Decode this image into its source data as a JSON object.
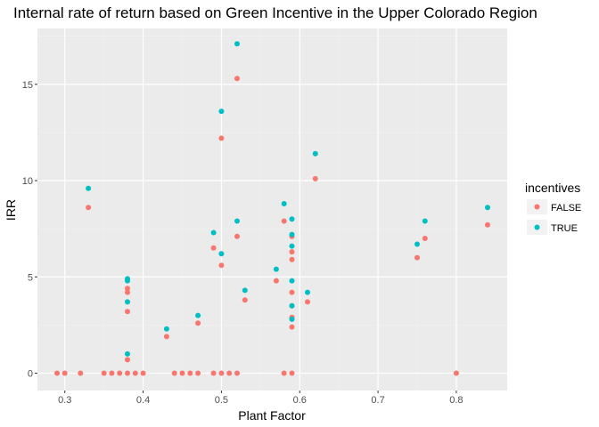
{
  "chart_data": {
    "type": "scatter",
    "title": "Internal rate of return based on Green Incentive in the Upper Colorado Region",
    "xlabel": "Plant Factor",
    "ylabel": "IRR",
    "xlim": [
      0.265,
      0.865
    ],
    "ylim": [
      -0.9,
      17.9
    ],
    "xticks": [
      0.3,
      0.4,
      0.5,
      0.6,
      0.7,
      0.8
    ],
    "xtick_labels": [
      "0.3",
      "0.4",
      "0.5",
      "0.6",
      "0.7",
      "0.8"
    ],
    "yticks": [
      0,
      5,
      10,
      15
    ],
    "ytick_labels": [
      "0",
      "5",
      "10",
      "15"
    ],
    "grid": true,
    "legend": {
      "title": "incentives",
      "position": "right"
    },
    "series": [
      {
        "name": "FALSE",
        "color": "#F8766D",
        "points": [
          [
            0.29,
            0
          ],
          [
            0.3,
            0
          ],
          [
            0.32,
            0
          ],
          [
            0.33,
            8.6
          ],
          [
            0.35,
            0
          ],
          [
            0.36,
            0
          ],
          [
            0.37,
            0
          ],
          [
            0.38,
            0
          ],
          [
            0.38,
            0.7
          ],
          [
            0.38,
            3.2
          ],
          [
            0.38,
            4.2
          ],
          [
            0.38,
            4.4
          ],
          [
            0.39,
            0
          ],
          [
            0.4,
            0
          ],
          [
            0.43,
            1.9
          ],
          [
            0.44,
            0
          ],
          [
            0.45,
            0
          ],
          [
            0.46,
            0
          ],
          [
            0.47,
            0
          ],
          [
            0.47,
            2.6
          ],
          [
            0.49,
            0
          ],
          [
            0.49,
            6.5
          ],
          [
            0.5,
            0
          ],
          [
            0.5,
            5.6
          ],
          [
            0.5,
            12.2
          ],
          [
            0.51,
            0
          ],
          [
            0.52,
            0
          ],
          [
            0.52,
            7.1
          ],
          [
            0.52,
            15.3
          ],
          [
            0.53,
            3.8
          ],
          [
            0.57,
            4.8
          ],
          [
            0.58,
            0
          ],
          [
            0.58,
            7.9
          ],
          [
            0.59,
            0
          ],
          [
            0.59,
            2.4
          ],
          [
            0.59,
            2.9
          ],
          [
            0.59,
            3.5
          ],
          [
            0.59,
            4.2
          ],
          [
            0.59,
            5.9
          ],
          [
            0.59,
            6.3
          ],
          [
            0.59,
            7.1
          ],
          [
            0.61,
            3.7
          ],
          [
            0.62,
            10.1
          ],
          [
            0.75,
            6.0
          ],
          [
            0.76,
            7.0
          ],
          [
            0.8,
            0
          ],
          [
            0.84,
            7.7
          ]
        ]
      },
      {
        "name": "TRUE",
        "color": "#00BFC4",
        "points": [
          [
            0.33,
            9.6
          ],
          [
            0.38,
            1.0
          ],
          [
            0.38,
            3.7
          ],
          [
            0.38,
            4.8
          ],
          [
            0.38,
            4.9
          ],
          [
            0.43,
            2.3
          ],
          [
            0.47,
            3.0
          ],
          [
            0.49,
            7.3
          ],
          [
            0.5,
            6.2
          ],
          [
            0.5,
            13.6
          ],
          [
            0.52,
            7.9
          ],
          [
            0.52,
            17.1
          ],
          [
            0.53,
            4.3
          ],
          [
            0.57,
            5.4
          ],
          [
            0.58,
            8.8
          ],
          [
            0.59,
            2.8
          ],
          [
            0.59,
            3.5
          ],
          [
            0.59,
            4.8
          ],
          [
            0.59,
            6.6
          ],
          [
            0.59,
            7.2
          ],
          [
            0.59,
            8.0
          ],
          [
            0.61,
            4.2
          ],
          [
            0.62,
            11.4
          ],
          [
            0.75,
            6.7
          ],
          [
            0.76,
            7.9
          ],
          [
            0.84,
            8.6
          ]
        ]
      }
    ]
  }
}
